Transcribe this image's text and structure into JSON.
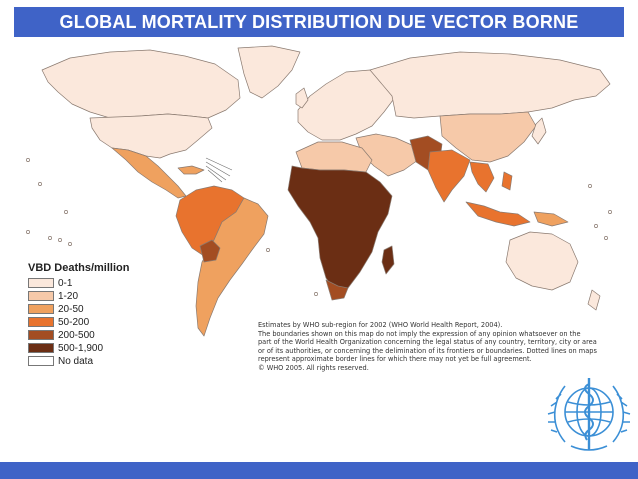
{
  "title": "GLOBAL MORTALITY DISTRIBUTION  DUE VECTOR BORNE DISEASES",
  "legend": {
    "title": "VBD Deaths/million",
    "items": [
      {
        "label": "0-1",
        "color": "#fbe8dc"
      },
      {
        "label": "1-20",
        "color": "#f6c9a9"
      },
      {
        "label": "20-50",
        "color": "#efa15f"
      },
      {
        "label": "50-200",
        "color": "#e8732e"
      },
      {
        "label": "200-500",
        "color": "#a34d22"
      },
      {
        "label": "500-1,900",
        "color": "#6b2e14"
      },
      {
        "label": "No data",
        "color": "#ffffff"
      }
    ]
  },
  "footnote": {
    "lines": [
      "Estimates by WHO sub-region for 2002 (WHO World Health Report, 2004).",
      "The boundaries shown on this map do not imply the expression of any opinion whatsoever on the",
      "part of the World Health Organization concerning the legal status of any country, territory, city or area",
      "or of its authorities, or concerning the delimination of its frontiers or boundaries. Dotted lines on maps",
      "represent approximate border lines for which there may not yet be full agreement.",
      "© WHO 2005. All rights reserved."
    ]
  },
  "logo": {
    "name": "WHO emblem",
    "color": "#3b8fd6"
  },
  "colors": {
    "banner": "#3f63c7",
    "border": "#8a7a70"
  }
}
